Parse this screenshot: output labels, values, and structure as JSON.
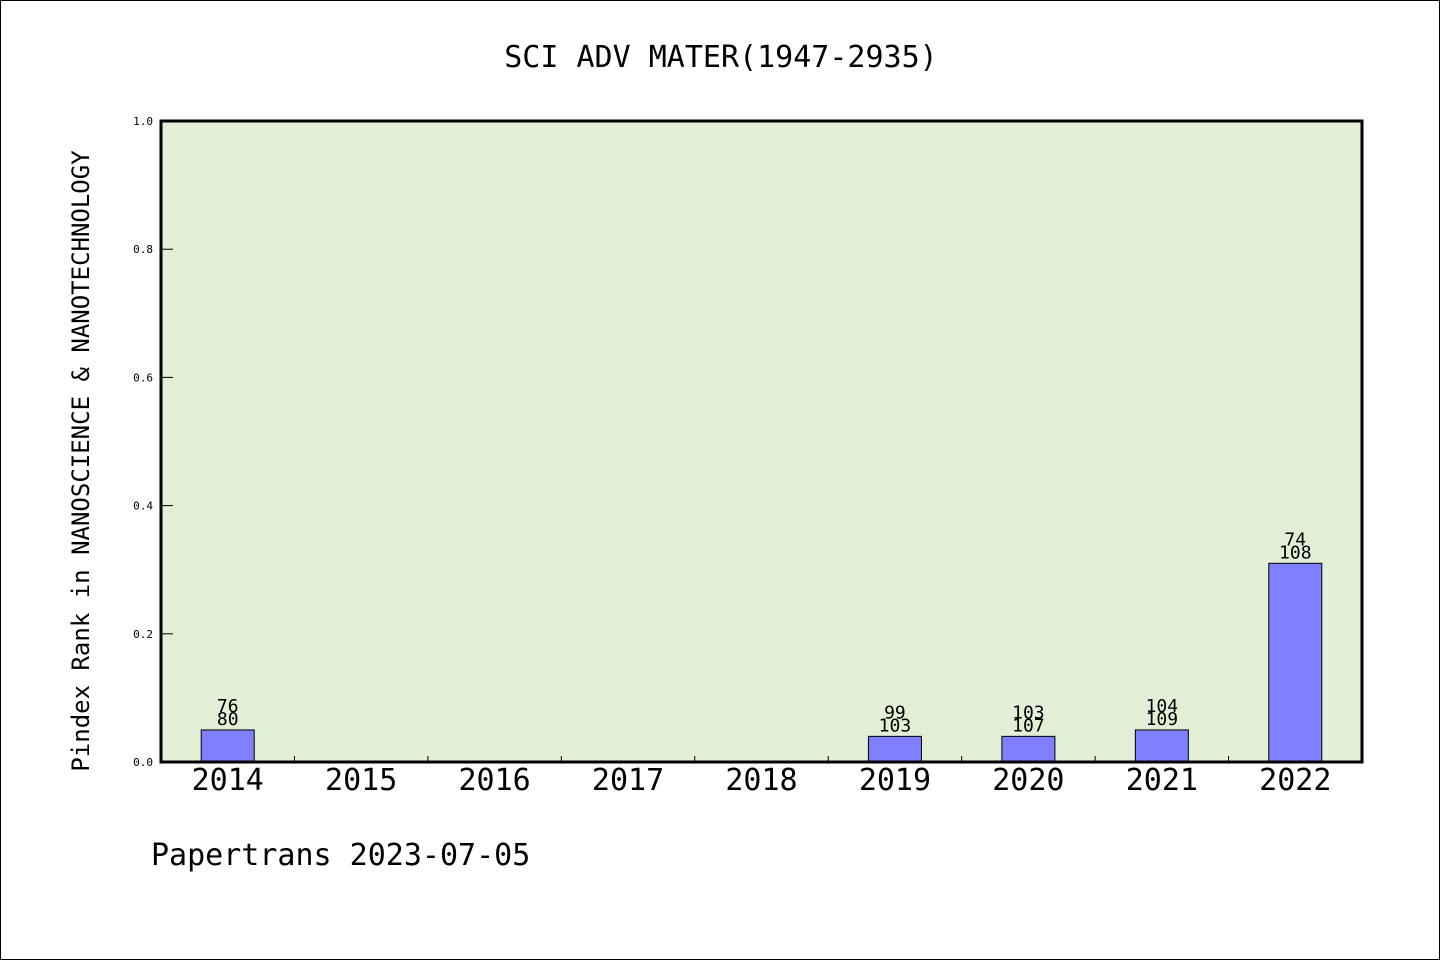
{
  "chart_data": {
    "type": "bar",
    "title": "SCI ADV MATER(1947-2935)",
    "xlabel": "",
    "ylabel": "Pindex Rank in NANOSCIENCE & NANOTECHNOLOGY",
    "ylim": [
      0,
      1.0
    ],
    "yticks": [
      "0.0",
      "0.2",
      "0.4",
      "0.6",
      "0.8",
      "1.0"
    ],
    "categories": [
      "2014",
      "2015",
      "2016",
      "2017",
      "2018",
      "2019",
      "2020",
      "2021",
      "2022"
    ],
    "values": [
      0.05,
      null,
      null,
      null,
      null,
      0.04,
      0.04,
      0.05,
      0.31
    ],
    "labels_top": [
      "76",
      "",
      "",
      "",
      "",
      "99",
      "103",
      "104",
      "74"
    ],
    "labels_bottom": [
      "80",
      "",
      "",
      "",
      "",
      "103",
      "107",
      "109",
      "108"
    ],
    "grid": false,
    "legend": "none"
  },
  "footer": {
    "text": "Papertrans 2023-07-05"
  },
  "colors": {
    "plot_background": "#e2efd6",
    "bar_fill": "#8080ff",
    "axis": "#000000"
  }
}
